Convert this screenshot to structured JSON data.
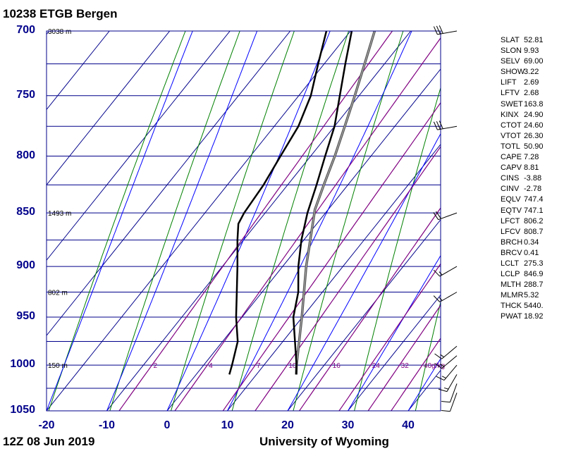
{
  "header": {
    "title": "10238 ETGB Bergen"
  },
  "footer": {
    "time": "12Z 08 Jun 2019",
    "source": "University of Wyoming"
  },
  "colors": {
    "grid": "#00008b",
    "isotherm": "#00008b",
    "dry_adiabat": "#008000",
    "moist_adiabat": "#0000ff",
    "mixing_ratio": "#800080",
    "sounding": "#000000",
    "parcel": "#555555"
  },
  "pressure_ticks": [
    "700",
    "750",
    "800",
    "850",
    "900",
    "950",
    "1000",
    "1050"
  ],
  "temperature_ticks": [
    "-20",
    "-10",
    "0",
    "10",
    "20",
    "30",
    "40"
  ],
  "height_labels": [
    {
      "p": 700,
      "text": "3038 m"
    },
    {
      "p": 850,
      "text": "1493 m"
    },
    {
      "p": 925,
      "text": "802 m"
    },
    {
      "p": 1000,
      "text": "150 m"
    }
  ],
  "mixing_ratio_labels": [
    "2",
    "4",
    "7",
    "10",
    "16",
    "24",
    "32",
    "40g/kg"
  ],
  "chart_data": {
    "type": "skew-t",
    "x_axis": {
      "ticks": [
        -20,
        -10,
        0,
        10,
        20,
        30,
        40
      ],
      "range": [
        -20,
        45
      ],
      "unit": "C"
    },
    "y_axis": {
      "scale": "log-pressure",
      "range": [
        700,
        1050
      ],
      "ticks": [
        700,
        750,
        800,
        850,
        900,
        950,
        1000,
        1050
      ],
      "unit": "hPa"
    },
    "mixing_ratio_lines": [
      2,
      4,
      7,
      10,
      16,
      24,
      32,
      40
    ],
    "temperature_profile": [
      {
        "p": 1010,
        "t": 16.6
      },
      {
        "p": 1000,
        "t": 15.4
      },
      {
        "p": 975,
        "t": 12.0
      },
      {
        "p": 950,
        "t": 8.5
      },
      {
        "p": 925,
        "t": 6.0
      },
      {
        "p": 900,
        "t": 2.6
      },
      {
        "p": 875,
        "t": -0.4
      },
      {
        "p": 850,
        "t": -3.0
      },
      {
        "p": 825,
        "t": -5.2
      },
      {
        "p": 800,
        "t": -7.6
      },
      {
        "p": 775,
        "t": -10.0
      },
      {
        "p": 750,
        "t": -13.2
      },
      {
        "p": 725,
        "t": -16.5
      },
      {
        "p": 700,
        "t": -19.8
      }
    ],
    "dewpoint_profile": [
      {
        "p": 1010,
        "t": 5.5
      },
      {
        "p": 1000,
        "t": 4.7
      },
      {
        "p": 975,
        "t": 2.5
      },
      {
        "p": 950,
        "t": -1.0
      },
      {
        "p": 925,
        "t": -4.2
      },
      {
        "p": 900,
        "t": -7.5
      },
      {
        "p": 875,
        "t": -11.0
      },
      {
        "p": 860,
        "t": -13.0
      },
      {
        "p": 850,
        "t": -13.5
      },
      {
        "p": 825,
        "t": -14.0
      },
      {
        "p": 800,
        "t": -15.0
      },
      {
        "p": 775,
        "t": -16.0
      },
      {
        "p": 750,
        "t": -18.0
      },
      {
        "p": 725,
        "t": -21.0
      },
      {
        "p": 700,
        "t": -24.0
      }
    ],
    "parcel_profile": [
      {
        "p": 1010,
        "t": 16.6
      },
      {
        "p": 1000,
        "t": 15.4
      },
      {
        "p": 950,
        "t": 9.9
      },
      {
        "p": 900,
        "t": 3.9
      },
      {
        "p": 847,
        "t": -2.2
      },
      {
        "p": 825,
        "t": -4.0
      },
      {
        "p": 800,
        "t": -6.0
      },
      {
        "p": 775,
        "t": -8.3
      },
      {
        "p": 750,
        "t": -10.7
      },
      {
        "p": 725,
        "t": -13.3
      },
      {
        "p": 700,
        "t": -16.0
      }
    ],
    "wind_barbs": [
      {
        "p": 700,
        "dir": 260,
        "kt": 30
      },
      {
        "p": 775,
        "dir": 260,
        "kt": 30
      },
      {
        "p": 850,
        "dir": 250,
        "kt": 20
      },
      {
        "p": 900,
        "dir": 240,
        "kt": 15
      },
      {
        "p": 925,
        "dir": 240,
        "kt": 15
      },
      {
        "p": 980,
        "dir": 230,
        "kt": 15
      },
      {
        "p": 990,
        "dir": 230,
        "kt": 15
      },
      {
        "p": 1000,
        "dir": 220,
        "kt": 15
      },
      {
        "p": 1010,
        "dir": 210,
        "kt": 15
      },
      {
        "p": 1020,
        "dir": 200,
        "kt": 10
      },
      {
        "p": 1030,
        "dir": 200,
        "kt": 10
      }
    ]
  },
  "indices": [
    {
      "name": "SLAT",
      "value": "52.81"
    },
    {
      "name": "SLON",
      "value": "9.93"
    },
    {
      "name": "SELV",
      "value": "69.00"
    },
    {
      "name": "SHOW",
      "value": "3.22"
    },
    {
      "name": "LIFT",
      "value": "2.69"
    },
    {
      "name": "LFTV",
      "value": "2.68"
    },
    {
      "name": "SWET",
      "value": "163.8"
    },
    {
      "name": "KINX",
      "value": "24.90"
    },
    {
      "name": "CTOT",
      "value": "24.60"
    },
    {
      "name": "VTOT",
      "value": "26.30"
    },
    {
      "name": "TOTL",
      "value": "50.90"
    },
    {
      "name": "CAPE",
      "value": "7.28"
    },
    {
      "name": "CAPV",
      "value": "8.81"
    },
    {
      "name": "CINS",
      "value": "-3.88"
    },
    {
      "name": "CINV",
      "value": "-2.78"
    },
    {
      "name": "EQLV",
      "value": "747.4"
    },
    {
      "name": "EQTV",
      "value": "747.1"
    },
    {
      "name": "LFCT",
      "value": "806.2"
    },
    {
      "name": "LFCV",
      "value": "808.7"
    },
    {
      "name": "BRCH",
      "value": "0.34"
    },
    {
      "name": "BRCV",
      "value": "0.41"
    },
    {
      "name": "LCLT",
      "value": "275.3"
    },
    {
      "name": "LCLP",
      "value": "846.9"
    },
    {
      "name": "MLTH",
      "value": "288.7"
    },
    {
      "name": "MLMR",
      "value": "5.32"
    },
    {
      "name": "THCK",
      "value": "5440."
    },
    {
      "name": "PWAT",
      "value": "18.92"
    }
  ]
}
